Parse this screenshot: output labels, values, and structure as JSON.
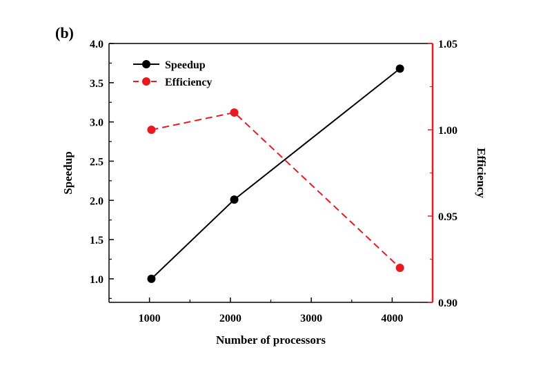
{
  "panel_label": "(b)",
  "colors": {
    "speedup": "#000000",
    "efficiency": "#e8191f",
    "axis_left": "#000000",
    "axis_right": "#e8191f"
  },
  "chart_data": {
    "type": "line",
    "panel_label": "(b)",
    "xlabel": "Number of processors",
    "ylabel_left": "Speedup",
    "ylabel_right": "Efficiency",
    "xlim": [
      500,
      4500
    ],
    "ylim_left": [
      0.7,
      4.0
    ],
    "ylim_right": [
      0.9,
      1.05
    ],
    "x_ticks": [
      1000,
      2000,
      3000,
      4000
    ],
    "x_tick_labels": [
      "1000",
      "2000",
      "3000",
      "4000"
    ],
    "y_left_ticks": [
      1.0,
      1.5,
      2.0,
      2.5,
      3.0,
      3.5,
      4.0
    ],
    "y_left_tick_labels": [
      "1.0",
      "1.5",
      "2.0",
      "2.5",
      "3.0",
      "3.5",
      "4.0"
    ],
    "y_right_ticks": [
      0.9,
      0.95,
      1.0,
      1.05
    ],
    "y_right_tick_labels": [
      "0.90",
      "0.95",
      "1.00",
      "1.05"
    ],
    "legend_position": "top-left",
    "grid": false,
    "series": [
      {
        "name": "Speedup",
        "axis": "left",
        "style": "solid",
        "x": [
          1024,
          2048,
          4096
        ],
        "values": [
          1.0,
          2.01,
          3.68
        ]
      },
      {
        "name": "Efficiency",
        "axis": "right",
        "style": "dashed",
        "x": [
          1024,
          2048,
          4096
        ],
        "values": [
          1.0,
          1.01,
          0.92
        ]
      }
    ]
  }
}
